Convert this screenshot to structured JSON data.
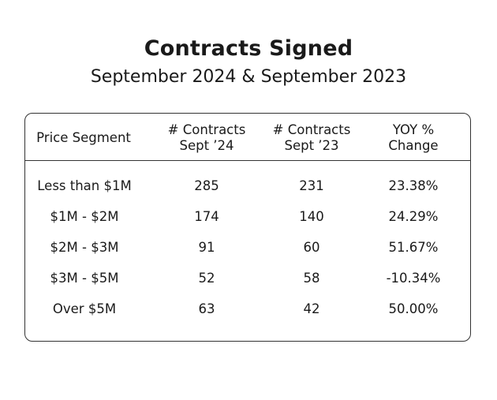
{
  "chart_data": {
    "type": "table",
    "title": "Contracts Signed",
    "subtitle": "September 2024 & September 2023",
    "columns": [
      "Price Segment",
      "# Contracts\nSept ’24",
      "# Contracts\nSept ’23",
      "YOY %\nChange"
    ],
    "header": {
      "col0": "Price Segment",
      "col1_line1": "# Contracts",
      "col1_line2": "Sept ’24",
      "col2_line1": "# Contracts",
      "col2_line2": "Sept ’23",
      "col3_line1": "YOY %",
      "col3_line2": "Change"
    },
    "rows": [
      [
        "Less than $1M",
        "285",
        "231",
        "23.38%"
      ],
      [
        "$1M - $2M",
        "174",
        "140",
        "24.29%"
      ],
      [
        "$2M - $3M",
        "91",
        "60",
        "51.67%"
      ],
      [
        "$3M - $5M",
        "52",
        "58",
        "-10.34%"
      ],
      [
        "Over $5M",
        "63",
        "42",
        "50.00%"
      ]
    ]
  }
}
